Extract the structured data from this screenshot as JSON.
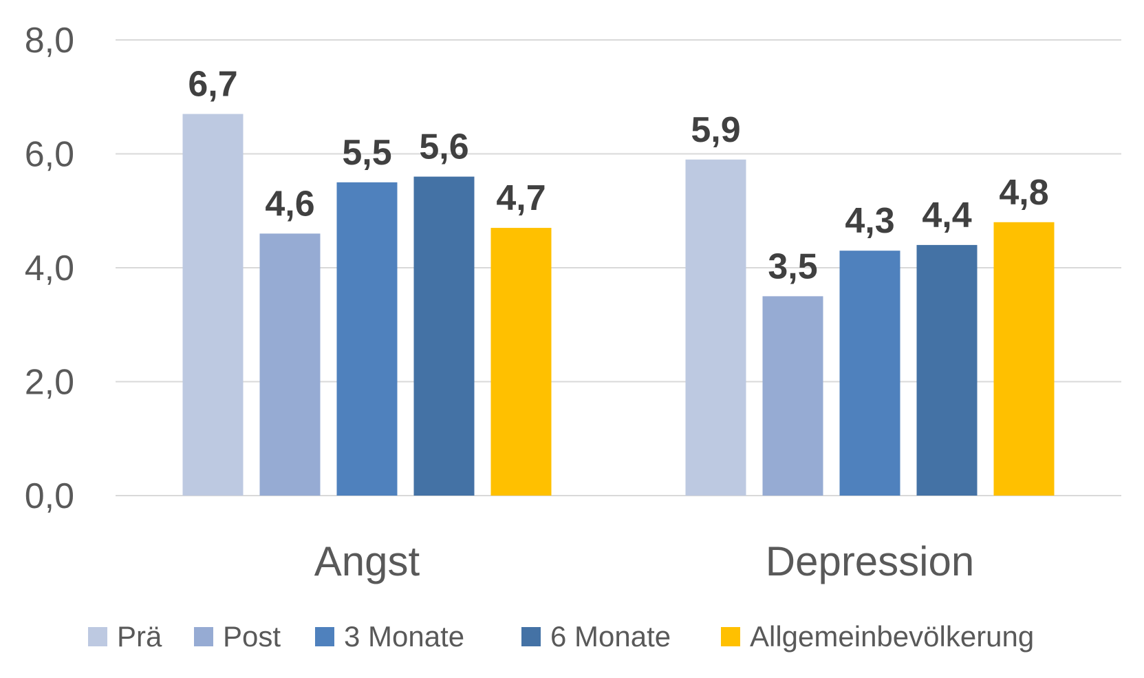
{
  "chart_data": {
    "type": "bar",
    "categories": [
      "Angst",
      "Depression"
    ],
    "series": [
      {
        "name": "Prä",
        "values": [
          6.7,
          5.9
        ],
        "color": "#bdc9e1"
      },
      {
        "name": "Post",
        "values": [
          4.6,
          3.5
        ],
        "color": "#96abd3"
      },
      {
        "name": "3 Monate",
        "values": [
          5.5,
          4.3
        ],
        "color": "#4f81bd"
      },
      {
        "name": "6 Monate",
        "values": [
          5.6,
          4.4
        ],
        "color": "#4472a5"
      },
      {
        "name": "Allgemeinbevölkerung",
        "values": [
          4.7,
          4.8
        ],
        "color": "#ffc000"
      }
    ],
    "data_labels": [
      [
        "6,7",
        "5,9"
      ],
      [
        "4,6",
        "3,5"
      ],
      [
        "5,5",
        "4,3"
      ],
      [
        "5,6",
        "4,4"
      ],
      [
        "4,7",
        "4,8"
      ]
    ],
    "yticks": [
      0,
      2,
      4,
      6,
      8
    ],
    "ytick_labels": [
      "0,0",
      "2,0",
      "4,0",
      "6,0",
      "8,0"
    ],
    "ylim": [
      0,
      8
    ],
    "title": "",
    "xlabel": "",
    "ylabel": "",
    "grid": true,
    "legend_position": "bottom"
  }
}
